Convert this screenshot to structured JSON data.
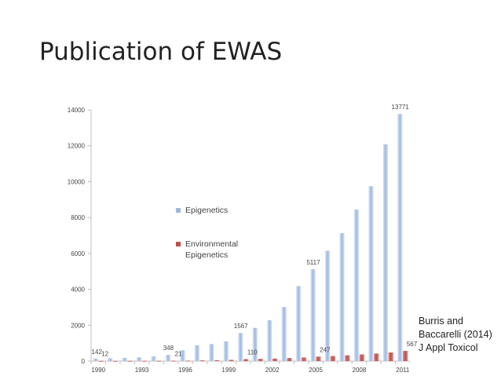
{
  "slide": {
    "title": "Publication of EWAS",
    "citation": "Burris and Baccarelli (2014) J Appl Toxicol"
  },
  "chart_data": {
    "type": "bar",
    "title": "",
    "xlabel": "",
    "ylabel": "",
    "ylim": [
      0,
      14000
    ],
    "y_ticks": [
      0,
      2000,
      4000,
      6000,
      8000,
      10000,
      12000,
      14000
    ],
    "x_tick_labels": [
      "1990",
      "1993",
      "1996",
      "1999",
      "2002",
      "2005",
      "2008",
      "2011"
    ],
    "grid": false,
    "legend_placement": "center-left",
    "categories": [
      "1990",
      "1991",
      "1992",
      "1993",
      "1994",
      "1995",
      "1996",
      "1997",
      "1998",
      "1999",
      "2000",
      "2001",
      "2002",
      "2003",
      "2004",
      "2005",
      "2006",
      "2007",
      "2008",
      "2009",
      "2010",
      "2011"
    ],
    "series": [
      {
        "name": "Epigenetics",
        "color": "#9db8e0",
        "values": [
          142,
          160,
          180,
          210,
          260,
          348,
          600,
          880,
          950,
          1100,
          1567,
          1850,
          2280,
          3020,
          4180,
          5117,
          6150,
          7130,
          8450,
          9750,
          12080,
          13771
        ]
      },
      {
        "name": "Environmental Epigenetics",
        "color": "#c0504d",
        "values": [
          12,
          12,
          12,
          15,
          18,
          21,
          25,
          40,
          50,
          70,
          110,
          125,
          140,
          170,
          200,
          247,
          280,
          320,
          370,
          420,
          480,
          567
        ]
      }
    ],
    "data_labels": [
      {
        "series": 0,
        "index": 0,
        "text": "142"
      },
      {
        "series": 1,
        "index": 0,
        "text": "12"
      },
      {
        "series": 0,
        "index": 5,
        "text": "348"
      },
      {
        "series": 1,
        "index": 5,
        "text": "21"
      },
      {
        "series": 0,
        "index": 10,
        "text": "1567"
      },
      {
        "series": 1,
        "index": 10,
        "text": "110"
      },
      {
        "series": 0,
        "index": 15,
        "text": "5117"
      },
      {
        "series": 1,
        "index": 15,
        "text": "247"
      },
      {
        "series": 0,
        "index": 21,
        "text": "13771"
      },
      {
        "series": 1,
        "index": 21,
        "text": "567"
      }
    ],
    "legend": [
      "Epigenetics",
      "Environmental Epigenetics"
    ]
  }
}
